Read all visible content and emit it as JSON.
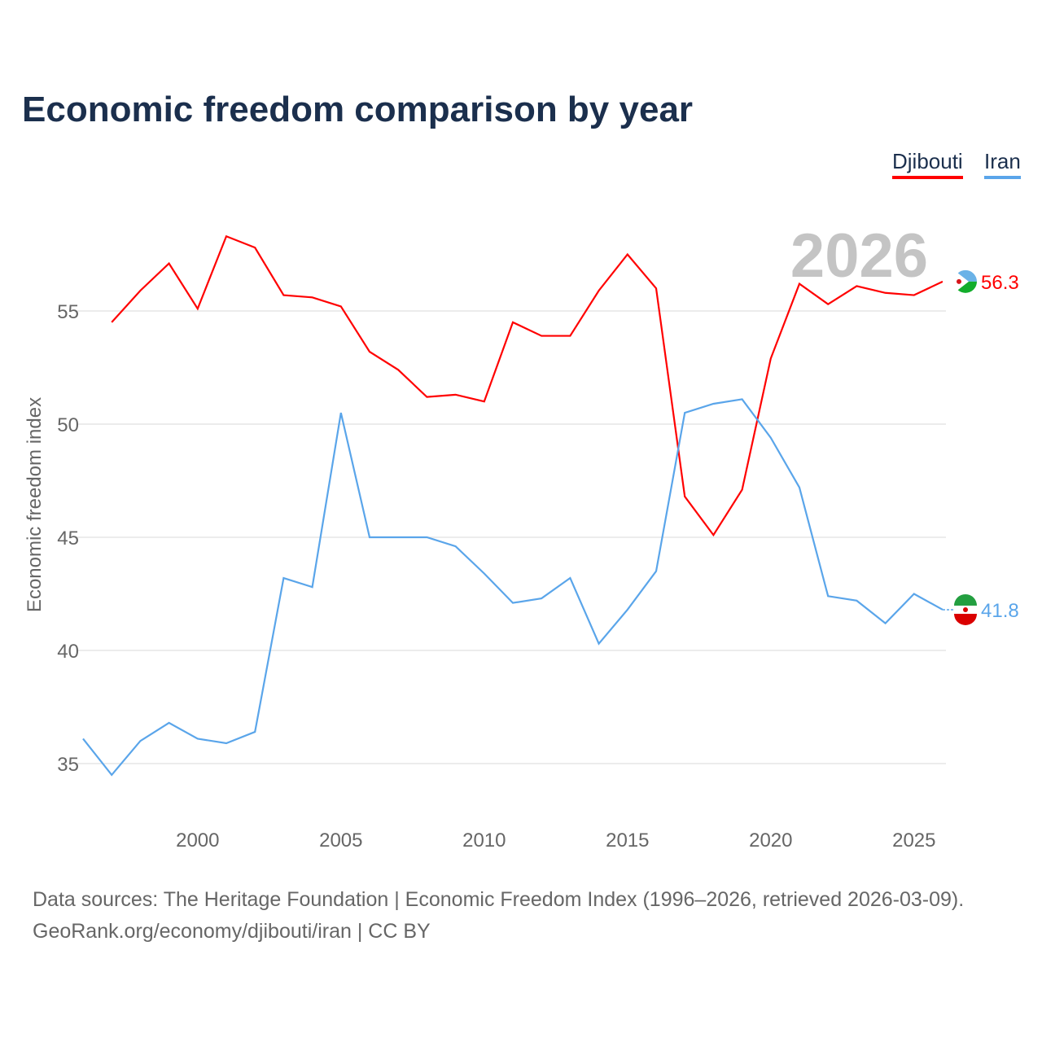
{
  "title": "Economic freedom comparison by year",
  "legend": [
    "Djibouti",
    "Iran"
  ],
  "footer": {
    "line1": "Data sources: The Heritage Foundation | Economic Freedom Index (1996–2026, retrieved 2026-03-09).",
    "line2": "GeoRank.org/economy/djibouti/iran | CC BY"
  },
  "chart_data": {
    "type": "line",
    "title": "Economic freedom comparison by year",
    "xlabel": "",
    "ylabel": "Economic freedom index",
    "xlim": [
      1996,
      2026
    ],
    "ylim": [
      32.5,
      59.5
    ],
    "xticks": [
      2000,
      2005,
      2010,
      2015,
      2020,
      2025
    ],
    "yticks": [
      35,
      40,
      45,
      50,
      55
    ],
    "year_label": "2026",
    "series": [
      {
        "name": "Djibouti",
        "color": "#ff0000",
        "end_label": "56.3",
        "x": [
          1997,
          1998,
          1999,
          2000,
          2001,
          2002,
          2003,
          2004,
          2005,
          2006,
          2007,
          2008,
          2009,
          2010,
          2011,
          2012,
          2013,
          2014,
          2015,
          2016,
          2017,
          2018,
          2019,
          2020,
          2021,
          2022,
          2023,
          2024,
          2025,
          2026
        ],
        "values": [
          54.5,
          55.9,
          57.1,
          55.1,
          58.3,
          57.8,
          55.7,
          55.6,
          55.2,
          53.2,
          52.4,
          51.2,
          51.3,
          51.0,
          54.5,
          53.9,
          53.9,
          55.9,
          57.5,
          56.0,
          46.8,
          45.1,
          47.1,
          52.9,
          56.2,
          55.3,
          56.1,
          55.8,
          55.7,
          56.3
        ]
      },
      {
        "name": "Iran",
        "color": "#5aa5ea",
        "end_label": "41.8",
        "x": [
          1996,
          1997,
          1998,
          1999,
          2000,
          2001,
          2002,
          2003,
          2004,
          2005,
          2006,
          2007,
          2008,
          2009,
          2010,
          2011,
          2012,
          2013,
          2014,
          2015,
          2016,
          2017,
          2018,
          2019,
          2020,
          2021,
          2022,
          2023,
          2024,
          2025,
          2026
        ],
        "values": [
          36.1,
          34.5,
          36.0,
          36.8,
          36.1,
          35.9,
          36.4,
          43.2,
          42.8,
          50.5,
          45.0,
          45.0,
          45.0,
          44.6,
          43.4,
          42.1,
          42.3,
          43.2,
          40.3,
          41.8,
          43.5,
          50.5,
          50.9,
          51.1,
          49.4,
          47.2,
          42.4,
          42.2,
          41.2,
          42.5,
          41.8
        ]
      }
    ]
  }
}
